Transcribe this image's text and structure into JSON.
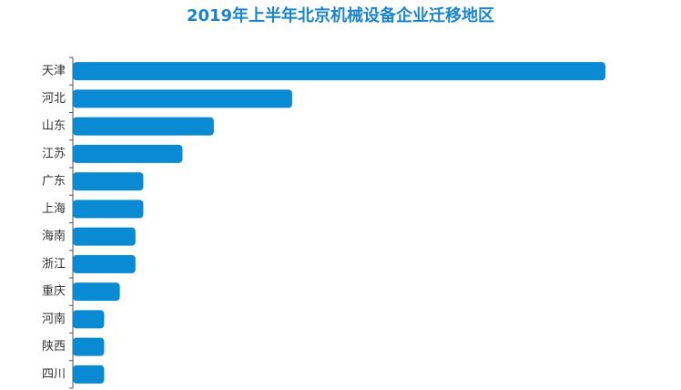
{
  "chart_data": {
    "type": "hbar",
    "title": "2019年上半年北京机械设备企业迁移地区",
    "categories": [
      "天津",
      "河北",
      "山东",
      "江苏",
      "广东",
      "上海",
      "海南",
      "浙江",
      "重庆",
      "河南",
      "陕西",
      "四川"
    ],
    "values": [
      34,
      14,
      9,
      7,
      4.5,
      4.5,
      4,
      4,
      3,
      2,
      2,
      2
    ],
    "color": "#0a8ad2",
    "xlim": [
      0,
      34
    ]
  }
}
